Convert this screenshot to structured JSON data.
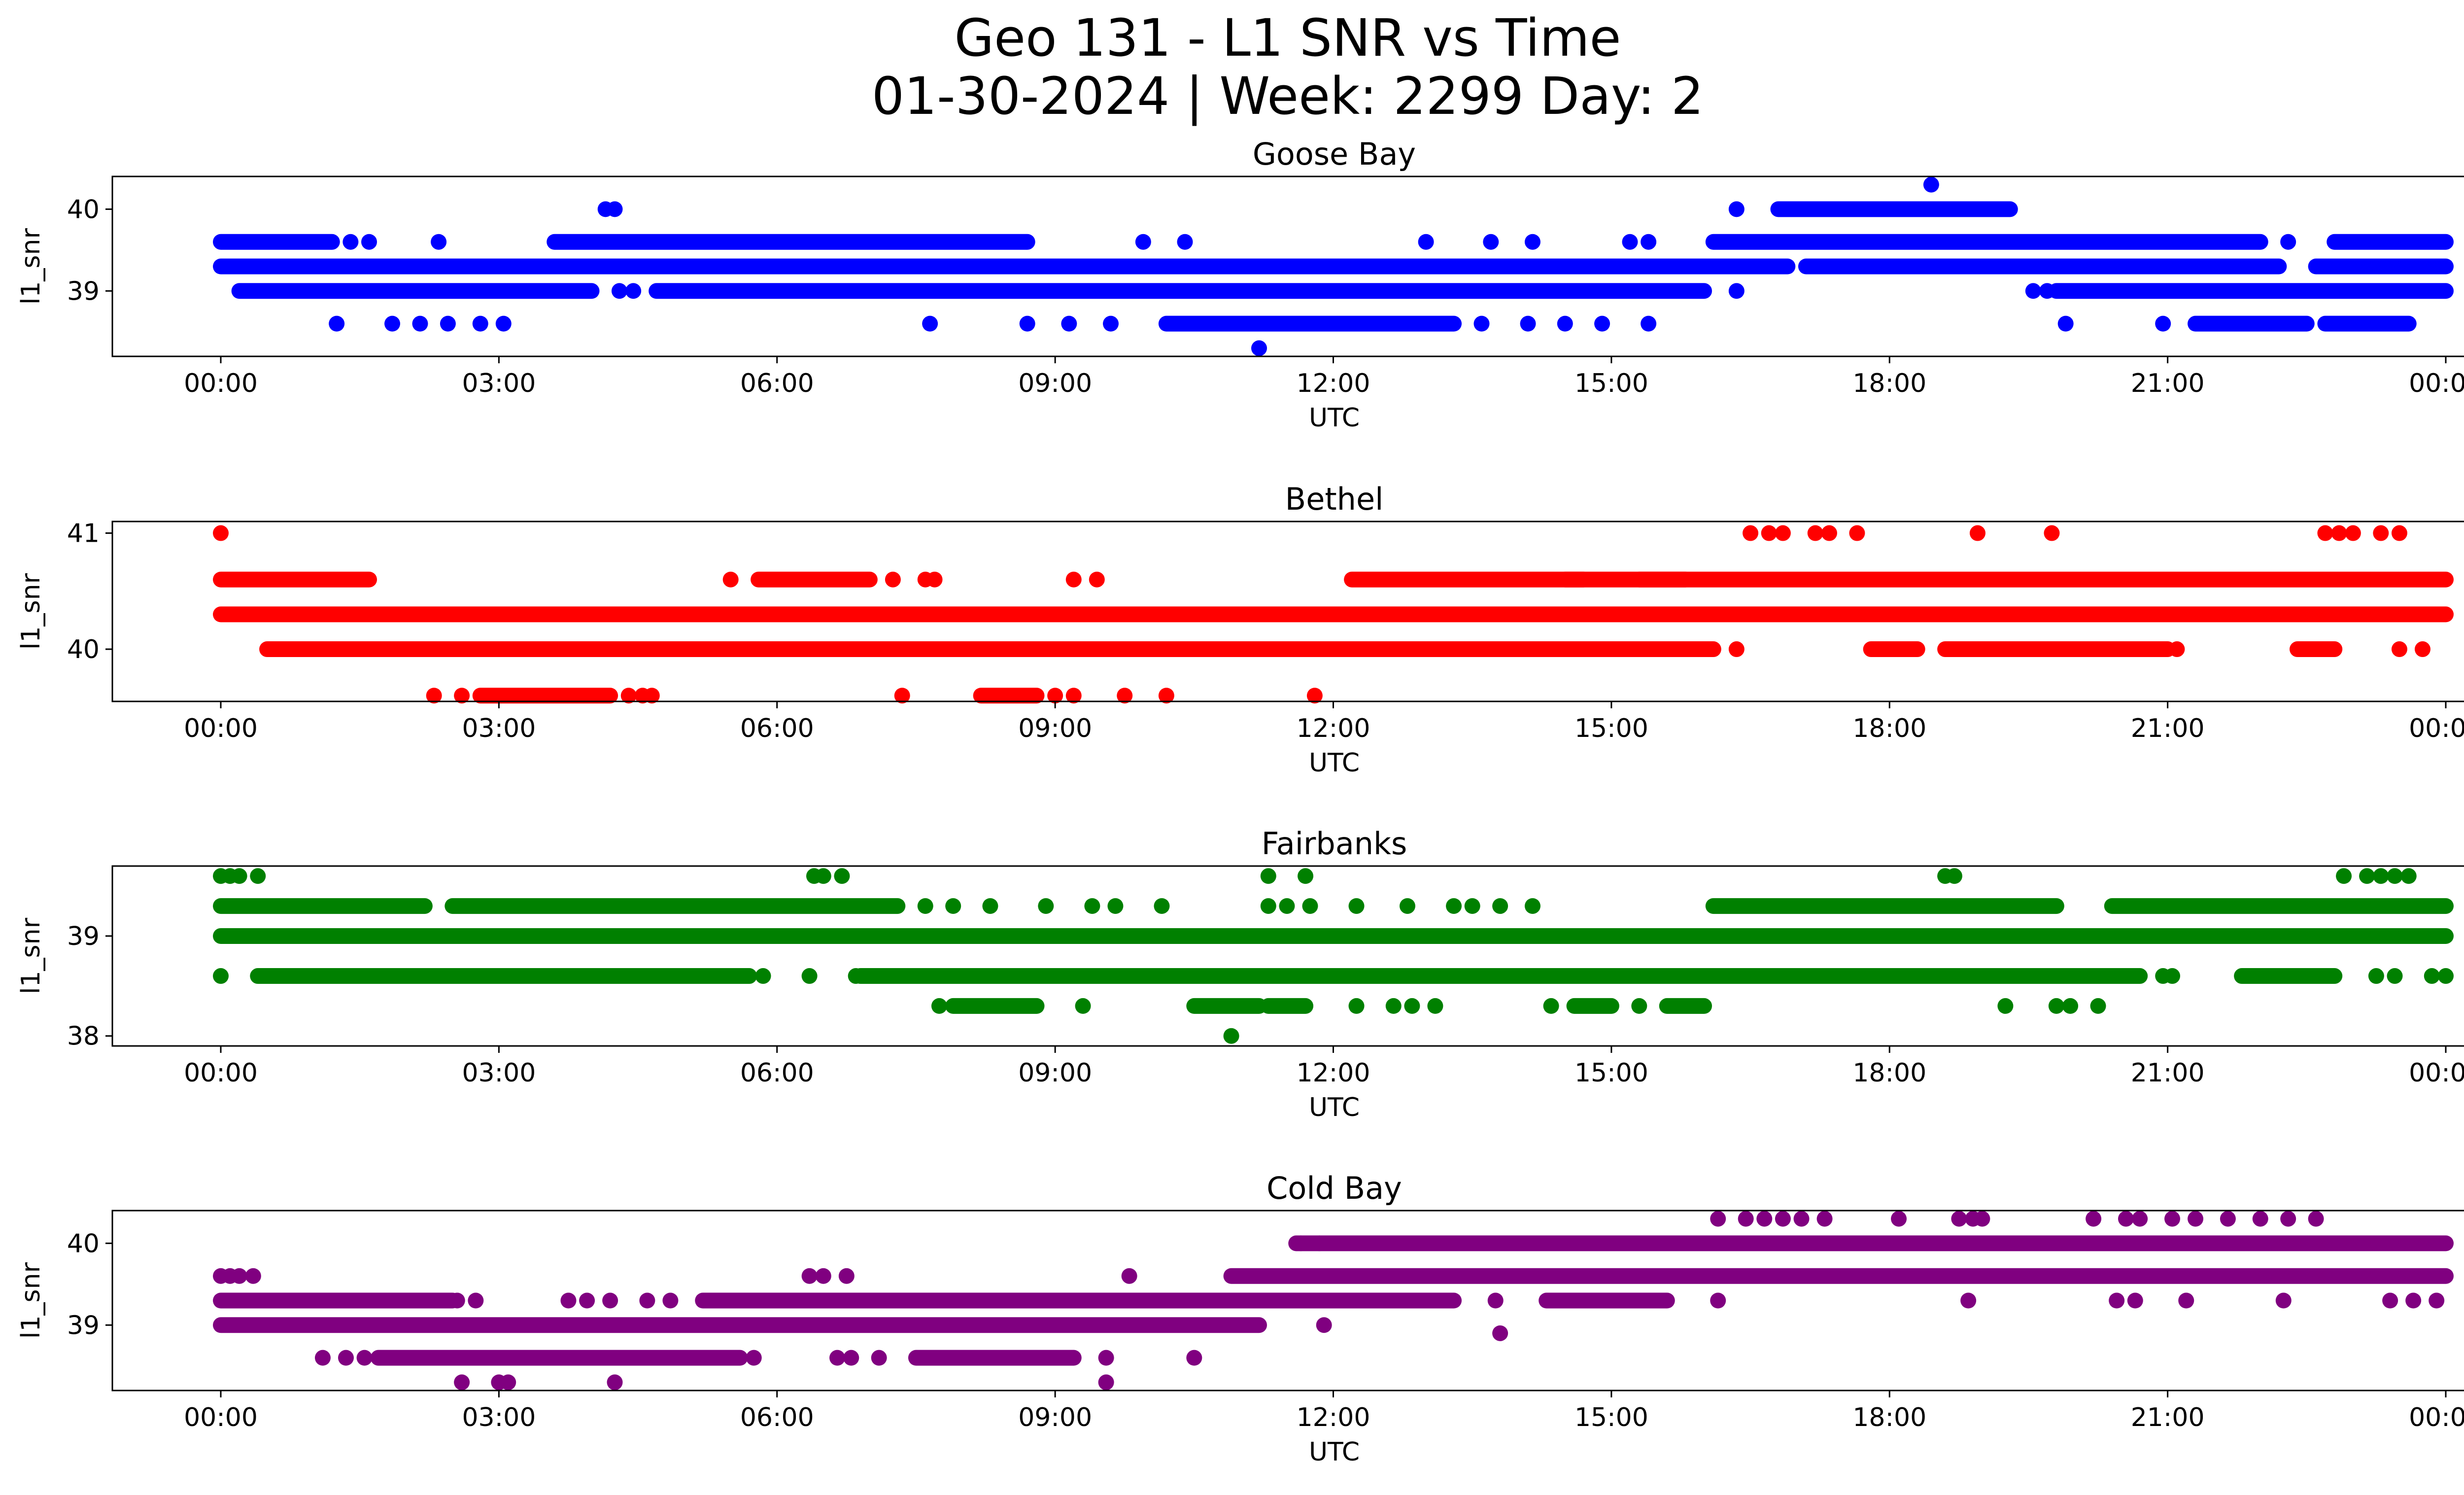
{
  "chart_data": [
    {
      "type": "scatter",
      "title": "Goose Bay",
      "xlabel": "UTC",
      "ylabel": "l1_snr",
      "color": "#0000ff",
      "xlim": [
        "00:00 (start)",
        "00:00 (end)"
      ],
      "ylim": [
        38.2,
        40.4
      ],
      "yticks": [
        39,
        40
      ],
      "xticks": [
        "00:00",
        "03:00",
        "06:00",
        "09:00",
        "12:00",
        "15:00",
        "18:00",
        "21:00",
        "00:00"
      ],
      "grid": false,
      "segments": [
        {
          "y": 39.6,
          "ranges": [
            [
              0.0,
              1.2
            ],
            [
              3.6,
              8.7
            ],
            [
              16.1,
              22.0
            ],
            [
              22.8,
              24.0
            ]
          ]
        },
        {
          "y": 39.3,
          "ranges": [
            [
              0.0,
              16.9
            ],
            [
              17.1,
              22.2
            ],
            [
              22.6,
              24.0
            ]
          ]
        },
        {
          "y": 39.0,
          "ranges": [
            [
              0.2,
              4.0
            ],
            [
              4.7,
              16.0
            ],
            [
              19.8,
              24.0
            ]
          ]
        },
        {
          "y": 38.6,
          "ranges": [
            [
              10.2,
              13.3
            ],
            [
              21.3,
              22.5
            ],
            [
              22.7,
              23.6
            ]
          ]
        },
        {
          "y": 40.0,
          "ranges": [
            [
              16.8,
              19.3
            ]
          ]
        }
      ],
      "points": [
        {
          "x": 4.15,
          "y": 40.0
        },
        {
          "x": 4.25,
          "y": 40.0
        },
        {
          "x": 16.35,
          "y": 40.0
        },
        {
          "x": 18.45,
          "y": 40.3
        },
        {
          "x": 11.2,
          "y": 38.3
        },
        {
          "x": 1.25,
          "y": 38.6
        },
        {
          "x": 1.85,
          "y": 38.6
        },
        {
          "x": 2.15,
          "y": 38.6
        },
        {
          "x": 2.45,
          "y": 38.6
        },
        {
          "x": 2.8,
          "y": 38.6
        },
        {
          "x": 3.05,
          "y": 38.6
        },
        {
          "x": 7.65,
          "y": 38.6
        },
        {
          "x": 8.7,
          "y": 38.6
        },
        {
          "x": 9.15,
          "y": 38.6
        },
        {
          "x": 9.6,
          "y": 38.6
        },
        {
          "x": 13.6,
          "y": 38.6
        },
        {
          "x": 14.1,
          "y": 38.6
        },
        {
          "x": 14.5,
          "y": 38.6
        },
        {
          "x": 14.9,
          "y": 38.6
        },
        {
          "x": 15.4,
          "y": 38.6
        },
        {
          "x": 19.9,
          "y": 38.6
        },
        {
          "x": 20.95,
          "y": 38.6
        },
        {
          "x": 1.4,
          "y": 39.6
        },
        {
          "x": 1.6,
          "y": 39.6
        },
        {
          "x": 2.35,
          "y": 39.6
        },
        {
          "x": 9.95,
          "y": 39.6
        },
        {
          "x": 10.4,
          "y": 39.6
        },
        {
          "x": 13.0,
          "y": 39.6
        },
        {
          "x": 13.7,
          "y": 39.6
        },
        {
          "x": 14.15,
          "y": 39.6
        },
        {
          "x": 15.2,
          "y": 39.6
        },
        {
          "x": 15.4,
          "y": 39.6
        },
        {
          "x": 22.3,
          "y": 39.6
        },
        {
          "x": 4.3,
          "y": 39.0
        },
        {
          "x": 4.45,
          "y": 39.0
        },
        {
          "x": 16.35,
          "y": 39.0
        },
        {
          "x": 19.55,
          "y": 39.0
        },
        {
          "x": 19.7,
          "y": 39.0
        }
      ]
    },
    {
      "type": "scatter",
      "title": "Bethel",
      "xlabel": "UTC",
      "ylabel": "l1_snr",
      "color": "#ff0000",
      "xlim": [
        "00:00 (start)",
        "00:00 (end)"
      ],
      "ylim": [
        39.55,
        41.1
      ],
      "yticks": [
        40,
        41
      ],
      "xticks": [
        "00:00",
        "03:00",
        "06:00",
        "09:00",
        "12:00",
        "15:00",
        "18:00",
        "21:00",
        "00:00"
      ],
      "grid": false,
      "segments": [
        {
          "y": 40.6,
          "ranges": [
            [
              0.0,
              1.6
            ],
            [
              5.8,
              7.0
            ],
            [
              12.2,
              14.7
            ],
            [
              14.5,
              15.8
            ],
            [
              15.3,
              24.0
            ]
          ]
        },
        {
          "y": 40.3,
          "ranges": [
            [
              0.0,
              24.0
            ]
          ]
        },
        {
          "y": 40.0,
          "ranges": [
            [
              0.5,
              16.1
            ],
            [
              17.8,
              18.3
            ],
            [
              18.6,
              21.0
            ],
            [
              22.4,
              22.8
            ]
          ]
        },
        {
          "y": 39.6,
          "ranges": [
            [
              2.8,
              4.2
            ],
            [
              8.2,
              8.8
            ]
          ]
        }
      ],
      "points": [
        {
          "x": 0.0,
          "y": 41.0
        },
        {
          "x": 16.5,
          "y": 41.0
        },
        {
          "x": 16.7,
          "y": 41.0
        },
        {
          "x": 16.85,
          "y": 41.0
        },
        {
          "x": 17.2,
          "y": 41.0
        },
        {
          "x": 17.35,
          "y": 41.0
        },
        {
          "x": 17.65,
          "y": 41.0
        },
        {
          "x": 18.95,
          "y": 41.0
        },
        {
          "x": 19.75,
          "y": 41.0
        },
        {
          "x": 22.7,
          "y": 41.0
        },
        {
          "x": 22.85,
          "y": 41.0
        },
        {
          "x": 23.0,
          "y": 41.0
        },
        {
          "x": 23.3,
          "y": 41.0
        },
        {
          "x": 23.5,
          "y": 41.0
        },
        {
          "x": 5.5,
          "y": 40.6
        },
        {
          "x": 7.25,
          "y": 40.6
        },
        {
          "x": 7.6,
          "y": 40.6
        },
        {
          "x": 7.7,
          "y": 40.6
        },
        {
          "x": 9.2,
          "y": 40.6
        },
        {
          "x": 9.45,
          "y": 40.6
        },
        {
          "x": 16.35,
          "y": 40.0
        },
        {
          "x": 21.1,
          "y": 40.0
        },
        {
          "x": 23.5,
          "y": 40.0
        },
        {
          "x": 23.75,
          "y": 40.0
        },
        {
          "x": 2.3,
          "y": 39.6
        },
        {
          "x": 2.6,
          "y": 39.6
        },
        {
          "x": 4.4,
          "y": 39.6
        },
        {
          "x": 4.55,
          "y": 39.6
        },
        {
          "x": 4.65,
          "y": 39.6
        },
        {
          "x": 7.35,
          "y": 39.6
        },
        {
          "x": 9.0,
          "y": 39.6
        },
        {
          "x": 9.2,
          "y": 39.6
        },
        {
          "x": 9.75,
          "y": 39.6
        },
        {
          "x": 10.2,
          "y": 39.6
        },
        {
          "x": 11.8,
          "y": 39.6
        }
      ]
    },
    {
      "type": "scatter",
      "title": "Fairbanks",
      "xlabel": "UTC",
      "ylabel": "l1_snr",
      "color": "#008000",
      "xlim": [
        "00:00 (start)",
        "00:00 (end)"
      ],
      "ylim": [
        37.9,
        39.7
      ],
      "yticks": [
        38,
        39
      ],
      "xticks": [
        "00:00",
        "03:00",
        "06:00",
        "09:00",
        "12:00",
        "15:00",
        "18:00",
        "21:00",
        "00:00"
      ],
      "grid": false,
      "segments": [
        {
          "y": 39.3,
          "ranges": [
            [
              0.0,
              2.2
            ],
            [
              2.5,
              7.3
            ],
            [
              16.1,
              19.8
            ],
            [
              20.4,
              24.0
            ]
          ]
        },
        {
          "y": 39.0,
          "ranges": [
            [
              0.0,
              24.0
            ]
          ]
        },
        {
          "y": 38.6,
          "ranges": [
            [
              0.4,
              5.7
            ],
            [
              6.9,
              20.7
            ],
            [
              17.5,
              20.6
            ],
            [
              21.8,
              22.8
            ]
          ]
        },
        {
          "y": 38.3,
          "ranges": [
            [
              7.9,
              8.8
            ],
            [
              10.5,
              11.2
            ],
            [
              11.3,
              11.7
            ],
            [
              14.6,
              15.0
            ],
            [
              15.6,
              16.0
            ]
          ]
        }
      ],
      "points": [
        {
          "x": 0.0,
          "y": 39.6
        },
        {
          "x": 0.1,
          "y": 39.6
        },
        {
          "x": 0.2,
          "y": 39.6
        },
        {
          "x": 0.4,
          "y": 39.6
        },
        {
          "x": 6.4,
          "y": 39.6
        },
        {
          "x": 6.5,
          "y": 39.6
        },
        {
          "x": 6.7,
          "y": 39.6
        },
        {
          "x": 11.3,
          "y": 39.6
        },
        {
          "x": 11.7,
          "y": 39.6
        },
        {
          "x": 18.6,
          "y": 39.6
        },
        {
          "x": 18.7,
          "y": 39.6
        },
        {
          "x": 22.9,
          "y": 39.6
        },
        {
          "x": 23.15,
          "y": 39.6
        },
        {
          "x": 23.3,
          "y": 39.6
        },
        {
          "x": 23.45,
          "y": 39.6
        },
        {
          "x": 23.6,
          "y": 39.6
        },
        {
          "x": 9.4,
          "y": 39.3
        },
        {
          "x": 9.65,
          "y": 39.3
        },
        {
          "x": 10.15,
          "y": 39.3
        },
        {
          "x": 11.3,
          "y": 39.3
        },
        {
          "x": 11.5,
          "y": 39.3
        },
        {
          "x": 11.75,
          "y": 39.3
        },
        {
          "x": 12.25,
          "y": 39.3
        },
        {
          "x": 12.8,
          "y": 39.3
        },
        {
          "x": 13.3,
          "y": 39.3
        },
        {
          "x": 13.5,
          "y": 39.3
        },
        {
          "x": 13.8,
          "y": 39.3
        },
        {
          "x": 14.15,
          "y": 39.3
        },
        {
          "x": 7.6,
          "y": 39.3
        },
        {
          "x": 7.9,
          "y": 39.3
        },
        {
          "x": 8.3,
          "y": 39.3
        },
        {
          "x": 8.9,
          "y": 39.3
        },
        {
          "x": 0.0,
          "y": 38.6
        },
        {
          "x": 5.85,
          "y": 38.6
        },
        {
          "x": 6.35,
          "y": 38.6
        },
        {
          "x": 6.85,
          "y": 38.6
        },
        {
          "x": 17.05,
          "y": 38.6
        },
        {
          "x": 17.3,
          "y": 38.6
        },
        {
          "x": 20.95,
          "y": 38.6
        },
        {
          "x": 21.05,
          "y": 38.6
        },
        {
          "x": 23.25,
          "y": 38.6
        },
        {
          "x": 23.45,
          "y": 38.6
        },
        {
          "x": 23.85,
          "y": 38.6
        },
        {
          "x": 24.0,
          "y": 38.6
        },
        {
          "x": 7.75,
          "y": 38.3
        },
        {
          "x": 9.3,
          "y": 38.3
        },
        {
          "x": 12.25,
          "y": 38.3
        },
        {
          "x": 12.65,
          "y": 38.3
        },
        {
          "x": 12.85,
          "y": 38.3
        },
        {
          "x": 13.1,
          "y": 38.3
        },
        {
          "x": 14.35,
          "y": 38.3
        },
        {
          "x": 15.3,
          "y": 38.3
        },
        {
          "x": 19.25,
          "y": 38.3
        },
        {
          "x": 19.8,
          "y": 38.3
        },
        {
          "x": 19.95,
          "y": 38.3
        },
        {
          "x": 20.25,
          "y": 38.3
        },
        {
          "x": 10.9,
          "y": 38.0
        }
      ]
    },
    {
      "type": "scatter",
      "title": "Cold Bay",
      "xlabel": "UTC",
      "ylabel": "l1_snr",
      "color": "#800080",
      "xlim": [
        "00:00 (start)",
        "00:00 (end)"
      ],
      "ylim": [
        38.2,
        40.4
      ],
      "yticks": [
        39,
        40
      ],
      "xticks": [
        "00:00",
        "03:00",
        "06:00",
        "09:00",
        "12:00",
        "15:00",
        "18:00",
        "21:00",
        "00:00"
      ],
      "grid": false,
      "segments": [
        {
          "y": 40.0,
          "ranges": [
            [
              11.6,
              24.0
            ]
          ]
        },
        {
          "y": 39.6,
          "ranges": [
            [
              10.9,
              24.0
            ]
          ]
        },
        {
          "y": 39.3,
          "ranges": [
            [
              0.0,
              2.5
            ],
            [
              5.2,
              13.3
            ],
            [
              14.3,
              15.6
            ]
          ]
        },
        {
          "y": 39.0,
          "ranges": [
            [
              0.0,
              11.2
            ]
          ]
        },
        {
          "y": 38.6,
          "ranges": [
            [
              1.7,
              5.6
            ],
            [
              7.5,
              9.2
            ]
          ]
        }
      ],
      "points": [
        {
          "x": 0.0,
          "y": 39.6
        },
        {
          "x": 0.1,
          "y": 39.6
        },
        {
          "x": 0.2,
          "y": 39.6
        },
        {
          "x": 0.35,
          "y": 39.6
        },
        {
          "x": 6.35,
          "y": 39.6
        },
        {
          "x": 6.5,
          "y": 39.6
        },
        {
          "x": 6.75,
          "y": 39.6
        },
        {
          "x": 9.8,
          "y": 39.6
        },
        {
          "x": 2.55,
          "y": 39.3
        },
        {
          "x": 2.75,
          "y": 39.3
        },
        {
          "x": 3.75,
          "y": 39.3
        },
        {
          "x": 3.95,
          "y": 39.3
        },
        {
          "x": 4.2,
          "y": 39.3
        },
        {
          "x": 4.6,
          "y": 39.3
        },
        {
          "x": 4.85,
          "y": 39.3
        },
        {
          "x": 13.75,
          "y": 39.3
        },
        {
          "x": 16.15,
          "y": 39.3
        },
        {
          "x": 18.85,
          "y": 39.3
        },
        {
          "x": 20.45,
          "y": 39.3
        },
        {
          "x": 20.65,
          "y": 39.3
        },
        {
          "x": 21.2,
          "y": 39.3
        },
        {
          "x": 22.25,
          "y": 39.3
        },
        {
          "x": 23.4,
          "y": 39.3
        },
        {
          "x": 23.65,
          "y": 39.3
        },
        {
          "x": 23.9,
          "y": 39.3
        },
        {
          "x": 11.9,
          "y": 39.0
        },
        {
          "x": 13.8,
          "y": 38.9
        },
        {
          "x": 1.1,
          "y": 38.6
        },
        {
          "x": 1.35,
          "y": 38.6
        },
        {
          "x": 1.55,
          "y": 38.6
        },
        {
          "x": 5.75,
          "y": 38.6
        },
        {
          "x": 6.65,
          "y": 38.6
        },
        {
          "x": 6.8,
          "y": 38.6
        },
        {
          "x": 7.1,
          "y": 38.6
        },
        {
          "x": 9.55,
          "y": 38.6
        },
        {
          "x": 10.5,
          "y": 38.6
        },
        {
          "x": 2.6,
          "y": 38.3
        },
        {
          "x": 3.0,
          "y": 38.3
        },
        {
          "x": 3.1,
          "y": 38.3
        },
        {
          "x": 4.25,
          "y": 38.3
        },
        {
          "x": 9.55,
          "y": 38.3
        },
        {
          "x": 16.15,
          "y": 40.3
        },
        {
          "x": 16.45,
          "y": 40.3
        },
        {
          "x": 16.65,
          "y": 40.3
        },
        {
          "x": 16.85,
          "y": 40.3
        },
        {
          "x": 17.05,
          "y": 40.3
        },
        {
          "x": 17.3,
          "y": 40.3
        },
        {
          "x": 18.1,
          "y": 40.3
        },
        {
          "x": 18.75,
          "y": 40.3
        },
        {
          "x": 18.9,
          "y": 40.3
        },
        {
          "x": 19.0,
          "y": 40.3
        },
        {
          "x": 20.2,
          "y": 40.3
        },
        {
          "x": 20.55,
          "y": 40.3
        },
        {
          "x": 20.7,
          "y": 40.3
        },
        {
          "x": 21.05,
          "y": 40.3
        },
        {
          "x": 21.3,
          "y": 40.3
        },
        {
          "x": 21.65,
          "y": 40.3
        },
        {
          "x": 22.0,
          "y": 40.3
        },
        {
          "x": 22.3,
          "y": 40.3
        },
        {
          "x": 22.6,
          "y": 40.3
        },
        {
          "x": 11.65,
          "y": 40.0
        },
        {
          "x": 11.85,
          "y": 40.0
        }
      ]
    }
  ],
  "figure": {
    "title_line1": "Geo 131 - L1 SNR vs Time",
    "title_line2": "01-30-2024 | Week: 2299 Day: 2"
  }
}
